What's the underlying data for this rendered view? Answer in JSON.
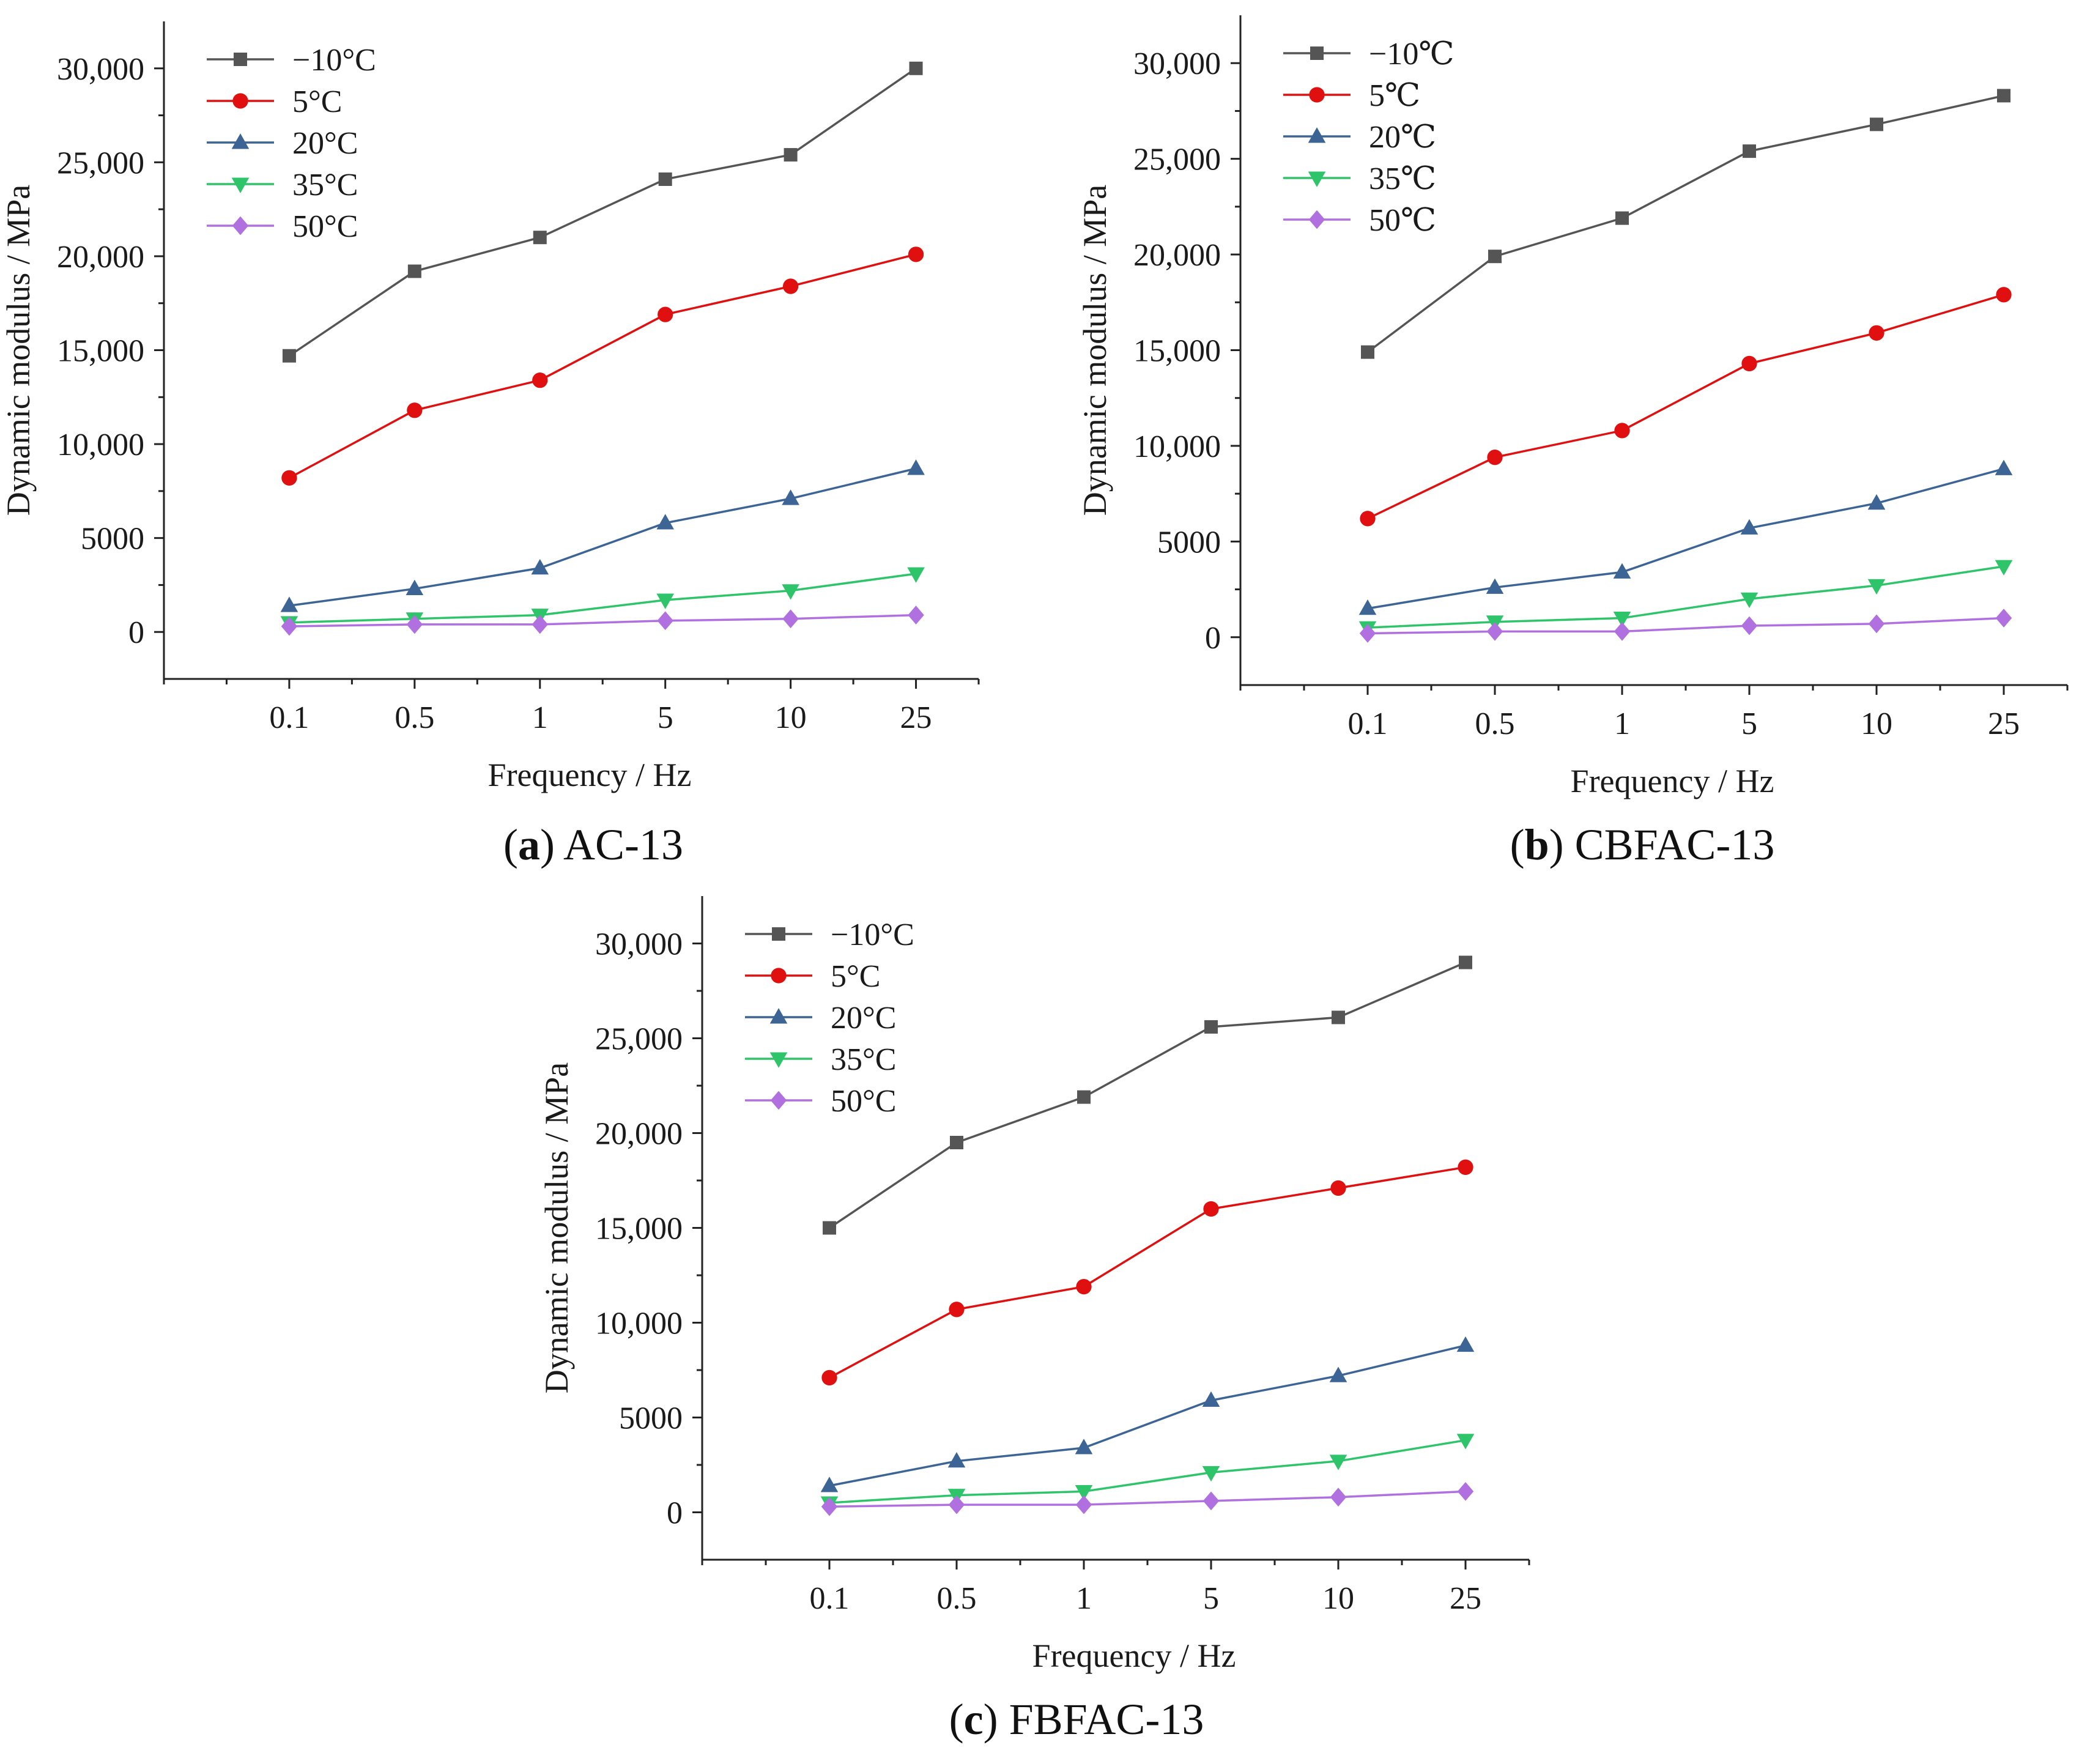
{
  "chart_data": [
    {
      "type": "line",
      "caption_letter": "a",
      "caption_text": "AC-13",
      "xlabel": "Frequency / Hz",
      "ylabel": "Dynamic modulus / MPa",
      "categories": [
        "0.1",
        "0.5",
        "1",
        "5",
        "10",
        "25"
      ],
      "yticks": [
        "0",
        "5000",
        "10,000",
        "15,000",
        "20,000",
        "25,000",
        "30,000"
      ],
      "ylim": [
        -2500,
        32500
      ],
      "legend_position": "top-left",
      "series": [
        {
          "name": "−10°C",
          "color": "#555555",
          "marker": "square",
          "values": [
            14700,
            19200,
            21000,
            24100,
            25400,
            30000
          ]
        },
        {
          "name": "5°C",
          "color": "#e01010",
          "marker": "circle",
          "values": [
            8200,
            11800,
            13400,
            16900,
            18400,
            20100
          ]
        },
        {
          "name": "20°C",
          "color": "#3c6494",
          "marker": "triangle-up",
          "values": [
            1400,
            2300,
            3400,
            5800,
            7100,
            8700
          ]
        },
        {
          "name": "35°C",
          "color": "#2ec46a",
          "marker": "triangle-down",
          "values": [
            500,
            700,
            900,
            1700,
            2200,
            3100
          ]
        },
        {
          "name": "50°C",
          "color": "#b070e0",
          "marker": "diamond",
          "values": [
            300,
            400,
            400,
            600,
            700,
            900
          ]
        }
      ]
    },
    {
      "type": "line",
      "caption_letter": "b",
      "caption_text": "CBFAC-13",
      "xlabel": "Frequency / Hz",
      "ylabel": "Dynamic modulus / MPa",
      "categories": [
        "0.1",
        "0.5",
        "1",
        "5",
        "10",
        "25"
      ],
      "yticks": [
        "0",
        "5000",
        "10,000",
        "15,000",
        "20,000",
        "25,000",
        "30,000"
      ],
      "ylim": [
        -2500,
        32500
      ],
      "legend_position": "top-left",
      "series": [
        {
          "name": "−10℃",
          "color": "#555555",
          "marker": "square",
          "values": [
            14900,
            19900,
            21900,
            25400,
            26800,
            28300
          ]
        },
        {
          "name": "5℃",
          "color": "#e01010",
          "marker": "circle",
          "values": [
            6200,
            9400,
            10800,
            14300,
            15900,
            17900
          ]
        },
        {
          "name": "20℃",
          "color": "#3c6494",
          "marker": "triangle-up",
          "values": [
            1500,
            2600,
            3400,
            5700,
            7000,
            8800
          ]
        },
        {
          "name": "35℃",
          "color": "#2ec46a",
          "marker": "triangle-down",
          "values": [
            500,
            800,
            1000,
            2000,
            2700,
            3700
          ]
        },
        {
          "name": "50℃",
          "color": "#b070e0",
          "marker": "diamond",
          "values": [
            200,
            300,
            300,
            600,
            700,
            1000
          ]
        }
      ]
    },
    {
      "type": "line",
      "caption_letter": "c",
      "caption_text": "FBFAC-13",
      "xlabel": "Frequency / Hz",
      "ylabel": "Dynamic modulus / MPa",
      "categories": [
        "0.1",
        "0.5",
        "1",
        "5",
        "10",
        "25"
      ],
      "yticks": [
        "0",
        "5000",
        "10,000",
        "15,000",
        "20,000",
        "25,000",
        "30,000"
      ],
      "ylim": [
        -2500,
        32500
      ],
      "legend_position": "top-left",
      "series": [
        {
          "name": "−10°C",
          "color": "#555555",
          "marker": "square",
          "values": [
            15000,
            19500,
            21900,
            25600,
            26100,
            29000
          ]
        },
        {
          "name": "5°C",
          "color": "#e01010",
          "marker": "circle",
          "values": [
            7100,
            10700,
            11900,
            16000,
            17100,
            18200
          ]
        },
        {
          "name": "20°C",
          "color": "#3c6494",
          "marker": "triangle-up",
          "values": [
            1400,
            2700,
            3400,
            5900,
            7200,
            8800
          ]
        },
        {
          "name": "35°C",
          "color": "#2ec46a",
          "marker": "triangle-down",
          "values": [
            500,
            900,
            1100,
            2100,
            2700,
            3800
          ]
        },
        {
          "name": "50°C",
          "color": "#b070e0",
          "marker": "diamond",
          "values": [
            300,
            400,
            400,
            600,
            800,
            1100
          ]
        }
      ]
    }
  ]
}
